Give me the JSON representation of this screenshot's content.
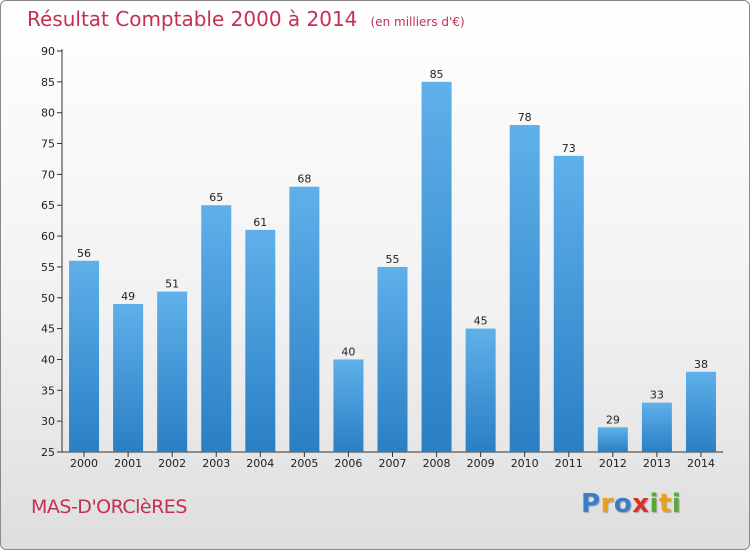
{
  "title": "Résultat Comptable 2000 à 2014",
  "subtitle": "(en milliers d'€)",
  "commune": "MAS-D'ORClèRES",
  "logo": {
    "letters": [
      {
        "ch": "P",
        "color": "#3b7ec8"
      },
      {
        "ch": "r",
        "color": "#e8a21a"
      },
      {
        "ch": "o",
        "color": "#3b7ec8"
      },
      {
        "ch": "x",
        "color": "#d8322a"
      },
      {
        "ch": "i",
        "color": "#5aa83a"
      },
      {
        "ch": "t",
        "color": "#e8a21a"
      },
      {
        "ch": "i",
        "color": "#5aa83a"
      }
    ]
  },
  "colors": {
    "bar_top": "#5fb0ea",
    "bar_bottom": "#2a7fc4",
    "title": "#c4304f"
  },
  "chart_data": {
    "type": "bar",
    "title": "Résultat Comptable 2000 à 2014",
    "xlabel": "",
    "ylabel": "",
    "categories": [
      "2000",
      "2001",
      "2002",
      "2003",
      "2004",
      "2005",
      "2006",
      "2007",
      "2008",
      "2009",
      "2010",
      "2011",
      "2012",
      "2013",
      "2014"
    ],
    "values": [
      56,
      49,
      51,
      65,
      61,
      68,
      40,
      55,
      85,
      45,
      78,
      73,
      29,
      33,
      38
    ],
    "ylim": [
      25,
      90
    ],
    "yticks": [
      25,
      30,
      35,
      40,
      45,
      50,
      55,
      60,
      65,
      70,
      75,
      80,
      85,
      90
    ],
    "grid": false
  }
}
